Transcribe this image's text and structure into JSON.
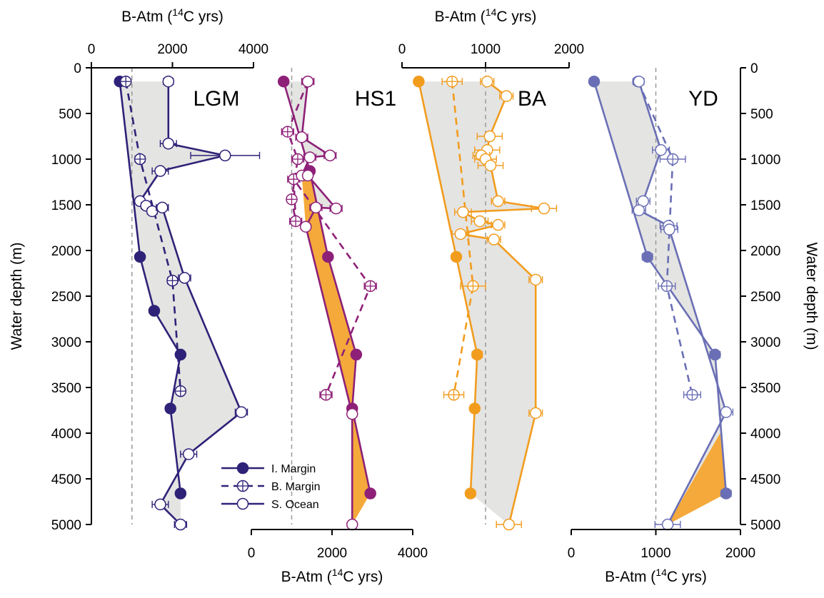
{
  "y_axis": {
    "label": "Water depth (m)",
    "ticks": [
      "0",
      "500",
      "1000",
      "1500",
      "2000",
      "2500",
      "3000",
      "3500",
      "4000",
      "4500",
      "5000"
    ],
    "range": [
      0,
      5000
    ]
  },
  "x_axis_label": {
    "prefix": "B-Atm (",
    "sup": "14",
    "suffix": "C yrs)"
  },
  "legend": [
    {
      "name": "I. Margin",
      "marker": "filled",
      "dash": "solid"
    },
    {
      "name": "B. Margin",
      "marker": "crossed",
      "dash": "dashed"
    },
    {
      "name": "S. Ocean",
      "marker": "open",
      "dash": "solid"
    }
  ],
  "chart_data": [
    {
      "type": "line",
      "panel": "LGM",
      "title": "LGM",
      "color": "#2e2278",
      "axis_position": "top",
      "xlim": [
        0,
        4000
      ],
      "ticks": [
        "0",
        "2000",
        "4000"
      ],
      "reference_line": 1000,
      "series": [
        {
          "name": "I. Margin",
          "x": [
            700,
            1200,
            1550,
            2200,
            1950,
            2200
          ],
          "y": [
            150,
            2070,
            2660,
            3140,
            3730,
            4660
          ],
          "err": [
            0,
            70,
            90,
            70,
            70,
            70
          ]
        },
        {
          "name": "B. Margin",
          "x": [
            850,
            1200,
            2000,
            2200
          ],
          "y": [
            150,
            1000,
            2330,
            3540
          ],
          "err": [
            100,
            120,
            120,
            100
          ]
        },
        {
          "name": "S. Ocean",
          "x": [
            1900,
            1900,
            3300,
            1700,
            1200,
            1350,
            1500,
            1750,
            2300,
            3700,
            2400,
            1700,
            2200
          ],
          "y": [
            150,
            830,
            960,
            1130,
            1460,
            1510,
            1570,
            1530,
            2300,
            3770,
            4230,
            4780,
            5000
          ],
          "err": [
            120,
            200,
            850,
            200,
            100,
            120,
            120,
            150,
            150,
            150,
            200,
            200,
            150
          ]
        }
      ],
      "shading": {
        "gray": true,
        "orange": false
      }
    },
    {
      "type": "line",
      "panel": "HS1",
      "title": "HS1",
      "color": "#8e2078",
      "axis_position": "bottom",
      "xlim": [
        0,
        4000
      ],
      "ticks": [
        "0",
        "2000",
        "4000"
      ],
      "reference_line": 1000,
      "series": [
        {
          "name": "I. Margin",
          "x": [
            800,
            1450,
            1900,
            2600,
            2500,
            2950
          ],
          "y": [
            150,
            1130,
            2070,
            3140,
            3730,
            4660
          ],
          "err": [
            0,
            70,
            70,
            70,
            70,
            70
          ]
        },
        {
          "name": "B. Margin",
          "x": [
            1400,
            900,
            1150,
            1000,
            1100,
            1050,
            2950,
            1850
          ],
          "y": [
            150,
            700,
            1000,
            1440,
            1680,
            1220,
            2390,
            3580
          ],
          "err": [
            150,
            150,
            150,
            100,
            150,
            150,
            150,
            150
          ]
        },
        {
          "name": "S. Ocean",
          "x": [
            1400,
            1250,
            1950,
            1450,
            1250,
            1400,
            2100,
            1600,
            1350,
            2500,
            2500
          ],
          "y": [
            150,
            760,
            960,
            980,
            1180,
            1180,
            1540,
            1530,
            1740,
            3790,
            5000
          ],
          "err": [
            150,
            150,
            150,
            150,
            100,
            100,
            150,
            150,
            100,
            80,
            80
          ]
        }
      ],
      "shading": {
        "gray": true,
        "orange": true
      }
    },
    {
      "type": "line",
      "panel": "BA",
      "title": "BA",
      "color": "#f29c1e",
      "axis_position": "top",
      "xlim": [
        0,
        2000
      ],
      "ticks": [
        "0",
        "1000",
        "2000"
      ],
      "reference_line": 1000,
      "series": [
        {
          "name": "I. Margin",
          "x": [
            200,
            650,
            900,
            870,
            820
          ],
          "y": [
            150,
            2070,
            3140,
            3730,
            4660
          ],
          "err": [
            0,
            40,
            60,
            40,
            40
          ]
        },
        {
          "name": "B. Margin",
          "x": [
            600,
            850,
            620
          ],
          "y": [
            150,
            2390,
            3580
          ],
          "err": [
            120,
            150,
            120
          ]
        },
        {
          "name": "S. Ocean",
          "x": [
            1020,
            1250,
            1050,
            1020,
            950,
            1000,
            1060,
            1150,
            1700,
            730,
            930,
            1150,
            700,
            1100,
            1600,
            1600,
            1280
          ],
          "y": [
            150,
            310,
            750,
            900,
            960,
            1000,
            1070,
            1460,
            1540,
            1580,
            1680,
            1720,
            1820,
            1880,
            2320,
            3780,
            5000
          ],
          "err": [
            80,
            80,
            150,
            150,
            100,
            130,
            150,
            80,
            150,
            100,
            100,
            80,
            100,
            80,
            80,
            80,
            150
          ]
        }
      ],
      "shading": {
        "gray": true,
        "orange": false
      }
    },
    {
      "type": "line",
      "panel": "YD",
      "title": "YD",
      "color": "#6a6fb5",
      "axis_position": "bottom",
      "xlim": [
        0,
        2000
      ],
      "ticks": [
        "0",
        "1000",
        "2000"
      ],
      "reference_line": 1000,
      "series": [
        {
          "name": "I. Margin",
          "x": [
            270,
            900,
            1700,
            1830
          ],
          "y": [
            150,
            2070,
            3140,
            4660
          ],
          "err": [
            0,
            60,
            60,
            60
          ]
        },
        {
          "name": "B. Margin",
          "x": [
            790,
            1200,
            1130,
            1430
          ],
          "y": [
            150,
            1000,
            2390,
            3580
          ],
          "err": [
            60,
            150,
            100,
            100
          ]
        },
        {
          "name": "S. Ocean",
          "x": [
            800,
            1060,
            850,
            800,
            1150,
            1160,
            1830,
            1140
          ],
          "y": [
            150,
            900,
            1460,
            1560,
            1730,
            1770,
            3770,
            5000
          ],
          "err": [
            60,
            100,
            80,
            80,
            100,
            100,
            80,
            150
          ]
        }
      ],
      "shading": {
        "gray": true,
        "orange": true
      }
    }
  ]
}
